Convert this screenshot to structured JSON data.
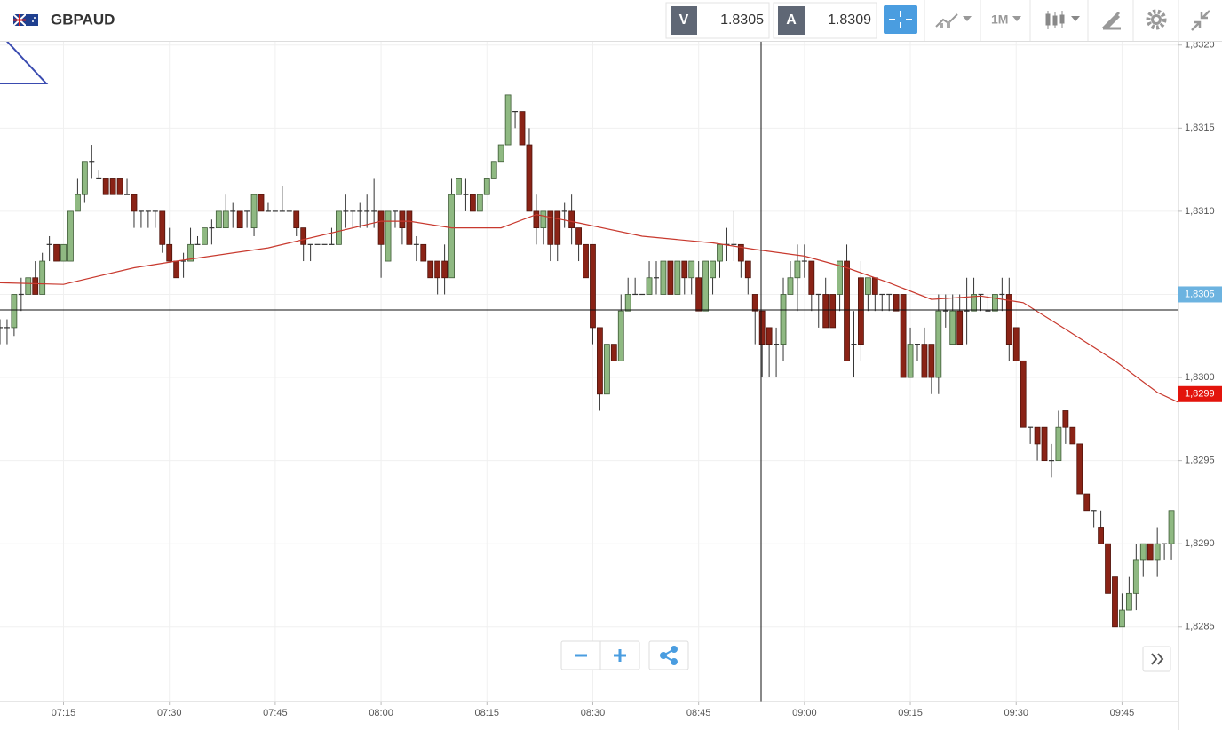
{
  "toolbar": {
    "symbol": "GBPAUD",
    "bid_label": "V",
    "bid": "1.8305",
    "ask_label": "A",
    "ask": "1.8309",
    "timeframe": "1M"
  },
  "chart_data": {
    "type": "candlestick",
    "x": [
      "07:06",
      "07:07",
      "07:08",
      "07:09",
      "07:10",
      "07:11",
      "07:12",
      "07:13",
      "07:14",
      "07:15",
      "07:16",
      "07:17",
      "07:18",
      "07:19",
      "07:20",
      "07:21",
      "07:22",
      "07:23",
      "07:24",
      "07:25",
      "07:26",
      "07:27",
      "07:28",
      "07:29",
      "07:30",
      "07:31",
      "07:32",
      "07:33",
      "07:34",
      "07:35",
      "07:36",
      "07:37",
      "07:38",
      "07:39",
      "07:40",
      "07:41",
      "07:42",
      "07:43",
      "07:44",
      "07:45",
      "07:46",
      "07:47",
      "07:48",
      "07:49",
      "07:50",
      "07:51",
      "07:52",
      "07:53",
      "07:54",
      "07:55",
      "07:56",
      "07:57",
      "07:58",
      "07:59",
      "08:00",
      "08:01",
      "08:02",
      "08:03",
      "08:04",
      "08:05",
      "08:06",
      "08:07",
      "08:08",
      "08:09",
      "08:10",
      "08:11",
      "08:12",
      "08:13",
      "08:14",
      "08:15",
      "08:16",
      "08:17",
      "08:18",
      "08:19",
      "08:20",
      "08:21",
      "08:22",
      "08:23",
      "08:24",
      "08:25",
      "08:26",
      "08:27",
      "08:28",
      "08:29",
      "08:30",
      "08:31",
      "08:32",
      "08:33",
      "08:34",
      "08:35",
      "08:36",
      "08:37",
      "08:38",
      "08:39",
      "08:40",
      "08:41",
      "08:42",
      "08:43",
      "08:44",
      "08:45",
      "08:46",
      "08:47",
      "08:48",
      "08:49",
      "08:50",
      "08:51",
      "08:52",
      "08:53",
      "08:54",
      "08:55",
      "08:56",
      "08:57",
      "08:58",
      "08:59",
      "09:00",
      "09:01",
      "09:02",
      "09:03",
      "09:04",
      "09:05",
      "09:06",
      "09:07",
      "09:08",
      "09:09",
      "09:10",
      "09:11",
      "09:12",
      "09:13",
      "09:14",
      "09:15",
      "09:16",
      "09:17",
      "09:18",
      "09:19",
      "09:20",
      "09:21",
      "09:22",
      "09:23",
      "09:24",
      "09:25",
      "09:26",
      "09:27",
      "09:28",
      "09:29",
      "09:30",
      "09:31",
      "09:32",
      "09:33",
      "09:34",
      "09:35",
      "09:36",
      "09:37",
      "09:38",
      "09:39",
      "09:40",
      "09:41",
      "09:42",
      "09:43",
      "09:44",
      "09:45",
      "09:46",
      "09:47",
      "09:48",
      "09:49",
      "09:50",
      "09:51",
      "09:52"
    ],
    "open": [
      1.8303,
      1.8303,
      1.8303,
      1.8305,
      1.8305,
      1.8306,
      1.8305,
      1.8308,
      1.8308,
      1.8307,
      1.8307,
      1.831,
      1.8311,
      1.8313,
      1.8312,
      1.8312,
      1.8312,
      1.8312,
      1.8311,
      1.8311,
      1.831,
      1.831,
      1.831,
      1.831,
      1.8308,
      1.8307,
      1.8307,
      1.8307,
      1.8308,
      1.8308,
      1.8309,
      1.8309,
      1.8309,
      1.831,
      1.831,
      1.831,
      1.8309,
      1.8311,
      1.831,
      1.831,
      1.831,
      1.831,
      1.831,
      1.8309,
      1.8308,
      1.8308,
      1.8308,
      1.8308,
      1.8308,
      1.831,
      1.831,
      1.831,
      1.831,
      1.831,
      1.831,
      1.8307,
      1.831,
      1.831,
      1.831,
      1.8308,
      1.8308,
      1.8307,
      1.8307,
      1.8307,
      1.8306,
      1.8311,
      1.8311,
      1.8311,
      1.831,
      1.8311,
      1.8312,
      1.8313,
      1.8314,
      1.8316,
      1.8316,
      1.8314,
      1.831,
      1.8309,
      1.831,
      1.831,
      1.831,
      1.831,
      1.8309,
      1.8308,
      1.8308,
      1.8303,
      1.8299,
      1.8302,
      1.8301,
      1.8304,
      1.8305,
      1.8305,
      1.8305,
      1.8306,
      1.8305,
      1.8307,
      1.8305,
      1.8307,
      1.8306,
      1.8306,
      1.8304,
      1.8306,
      1.8307,
      1.8308,
      1.8308,
      1.8308,
      1.8307,
      1.8305,
      1.8304,
      1.8303,
      1.8302,
      1.8302,
      1.8305,
      1.8306,
      1.8307,
      1.8307,
      1.8305,
      1.8305,
      1.8305,
      1.8305,
      1.8307,
      1.8302,
      1.8306,
      1.8305,
      1.8306,
      1.8305,
      1.8305,
      1.8305,
      1.8305,
      1.83,
      1.8302,
      1.8302,
      1.8302,
      1.83,
      1.8304,
      1.8302,
      1.8304,
      1.8304,
      1.8304,
      1.8305,
      1.8304,
      1.8304,
      1.8305,
      1.8305,
      1.8303,
      1.8301,
      1.8297,
      1.8297,
      1.8297,
      1.8295,
      1.8295,
      1.8298,
      1.8297,
      1.8296,
      1.8293,
      1.8292,
      1.8291,
      1.829,
      1.8288,
      1.8285,
      1.8286,
      1.8287,
      1.8289,
      1.829,
      1.8289,
      1.829,
      1.829
    ],
    "high": [
      1.83035,
      1.83035,
      1.8305,
      1.8306,
      1.8306,
      1.8307,
      1.83075,
      1.83085,
      1.8308,
      1.8308,
      1.831,
      1.8312,
      1.8313,
      1.8314,
      1.83125,
      1.8312,
      1.8312,
      1.8312,
      1.8312,
      1.8311,
      1.831,
      1.831,
      1.831,
      1.831,
      1.8309,
      1.8307,
      1.83075,
      1.8309,
      1.83085,
      1.8309,
      1.83095,
      1.831,
      1.8311,
      1.83105,
      1.831,
      1.831,
      1.8311,
      1.8311,
      1.83105,
      1.831,
      1.83115,
      1.831,
      1.831,
      1.8309,
      1.8308,
      1.8308,
      1.8308,
      1.8309,
      1.831,
      1.8311,
      1.831,
      1.83105,
      1.8311,
      1.8312,
      1.831,
      1.831,
      1.831,
      1.831,
      1.831,
      1.83085,
      1.8308,
      1.8307,
      1.8307,
      1.8308,
      1.8312,
      1.8312,
      1.8312,
      1.8311,
      1.8311,
      1.8312,
      1.8313,
      1.8314,
      1.8317,
      1.8316,
      1.8316,
      1.8315,
      1.8311,
      1.831,
      1.831,
      1.831,
      1.83105,
      1.8311,
      1.8309,
      1.8308,
      1.8308,
      1.8303,
      1.8302,
      1.8302,
      1.8305,
      1.8306,
      1.8306,
      1.8305,
      1.8307,
      1.8307,
      1.8307,
      1.8307,
      1.8307,
      1.8307,
      1.8307,
      1.8307,
      1.8307,
      1.8307,
      1.8308,
      1.8309,
      1.831,
      1.8308,
      1.8307,
      1.8305,
      1.8304,
      1.8303,
      1.8303,
      1.8306,
      1.8307,
      1.8308,
      1.8308,
      1.8307,
      1.8305,
      1.8306,
      1.8305,
      1.8307,
      1.8308,
      1.8304,
      1.8307,
      1.8306,
      1.8306,
      1.8305,
      1.8305,
      1.8305,
      1.8305,
      1.8303,
      1.8302,
      1.8303,
      1.8302,
      1.8305,
      1.8305,
      1.8305,
      1.8305,
      1.8306,
      1.8306,
      1.8305,
      1.8305,
      1.8305,
      1.8306,
      1.8306,
      1.8303,
      1.8301,
      1.8297,
      1.8297,
      1.8297,
      1.8296,
      1.8298,
      1.8298,
      1.8297,
      1.8296,
      1.8293,
      1.8292,
      1.8292,
      1.829,
      1.8288,
      1.8287,
      1.8288,
      1.829,
      1.829,
      1.829,
      1.8291,
      1.829,
      1.8292
    ],
    "low": [
      1.8302,
      1.8302,
      1.83025,
      1.8304,
      1.8305,
      1.8305,
      1.8305,
      1.8307,
      1.8307,
      1.8307,
      1.8307,
      1.831,
      1.83105,
      1.8312,
      1.8312,
      1.8311,
      1.8311,
      1.8311,
      1.8311,
      1.8309,
      1.8309,
      1.8309,
      1.8309,
      1.83075,
      1.8307,
      1.8306,
      1.8306,
      1.8307,
      1.8308,
      1.8308,
      1.8308,
      1.8309,
      1.8309,
      1.8309,
      1.8309,
      1.8309,
      1.83085,
      1.831,
      1.831,
      1.831,
      1.831,
      1.831,
      1.83085,
      1.8307,
      1.8307,
      1.8308,
      1.8308,
      1.8308,
      1.8308,
      1.8309,
      1.8309,
      1.8309,
      1.8309,
      1.8309,
      1.8306,
      1.8307,
      1.8309,
      1.8308,
      1.8308,
      1.8307,
      1.8307,
      1.8306,
      1.8305,
      1.8305,
      1.8306,
      1.8311,
      1.831,
      1.831,
      1.831,
      1.8311,
      1.8312,
      1.8313,
      1.8314,
      1.8315,
      1.8314,
      1.831,
      1.8308,
      1.8308,
      1.8307,
      1.8307,
      1.8309,
      1.8308,
      1.8307,
      1.8306,
      1.8302,
      1.8298,
      1.8299,
      1.8301,
      1.8301,
      1.8304,
      1.8305,
      1.8305,
      1.8305,
      1.8305,
      1.8305,
      1.8305,
      1.8305,
      1.8305,
      1.8305,
      1.8304,
      1.8304,
      1.8305,
      1.8306,
      1.8307,
      1.8307,
      1.8306,
      1.8305,
      1.8302,
      1.83,
      1.83,
      1.83,
      1.8301,
      1.8305,
      1.8304,
      1.8306,
      1.8304,
      1.8303,
      1.8303,
      1.8303,
      1.8304,
      1.8301,
      1.83,
      1.8301,
      1.8304,
      1.8304,
      1.8304,
      1.8304,
      1.8304,
      1.83,
      1.83,
      1.8301,
      1.83,
      1.8299,
      1.8299,
      1.8303,
      1.8302,
      1.8302,
      1.8302,
      1.8304,
      1.8304,
      1.8304,
      1.8304,
      1.8304,
      1.8301,
      1.8301,
      1.8297,
      1.8296,
      1.8295,
      1.8295,
      1.8294,
      1.8295,
      1.8296,
      1.8296,
      1.8293,
      1.8292,
      1.8291,
      1.829,
      1.8287,
      1.8285,
      1.8285,
      1.8286,
      1.8286,
      1.8288,
      1.8289,
      1.8288,
      1.8289,
      1.8289
    ],
    "close": [
      1.8303,
      1.8303,
      1.8305,
      1.8305,
      1.8306,
      1.8305,
      1.8307,
      1.8308,
      1.8307,
      1.8308,
      1.831,
      1.8311,
      1.8313,
      1.8313,
      1.8312,
      1.8311,
      1.8311,
      1.8311,
      1.8311,
      1.831,
      1.831,
      1.831,
      1.831,
      1.8308,
      1.8307,
      1.8306,
      1.8307,
      1.8308,
      1.8308,
      1.8309,
      1.8309,
      1.831,
      1.831,
      1.831,
      1.8309,
      1.831,
      1.8311,
      1.831,
      1.831,
      1.831,
      1.831,
      1.831,
      1.8309,
      1.8308,
      1.8308,
      1.8308,
      1.8308,
      1.8308,
      1.831,
      1.831,
      1.831,
      1.831,
      1.831,
      1.831,
      1.8308,
      1.831,
      1.831,
      1.8309,
      1.8308,
      1.8308,
      1.8307,
      1.8306,
      1.8306,
      1.8306,
      1.8311,
      1.8312,
      1.8311,
      1.831,
      1.8311,
      1.8312,
      1.8313,
      1.8314,
      1.8317,
      1.8316,
      1.8314,
      1.831,
      1.8309,
      1.831,
      1.8308,
      1.8308,
      1.831,
      1.8309,
      1.8308,
      1.8306,
      1.8303,
      1.8299,
      1.8302,
      1.8301,
      1.8304,
      1.8305,
      1.8305,
      1.8305,
      1.8306,
      1.8306,
      1.8307,
      1.8305,
      1.8307,
      1.8306,
      1.8307,
      1.8304,
      1.8307,
      1.8307,
      1.8308,
      1.8308,
      1.8308,
      1.8307,
      1.8306,
      1.8304,
      1.8302,
      1.8302,
      1.8302,
      1.8305,
      1.8306,
      1.8307,
      1.8307,
      1.8305,
      1.8305,
      1.8303,
      1.8303,
      1.8307,
      1.8301,
      1.8302,
      1.8302,
      1.8306,
      1.8305,
      1.8305,
      1.8305,
      1.8304,
      1.83,
      1.8302,
      1.8302,
      1.83,
      1.83,
      1.8304,
      1.8304,
      1.8304,
      1.8302,
      1.8304,
      1.8305,
      1.8305,
      1.8304,
      1.8305,
      1.8305,
      1.8302,
      1.8301,
      1.8297,
      1.8297,
      1.8296,
      1.8295,
      1.8295,
      1.8297,
      1.8297,
      1.8296,
      1.8293,
      1.8292,
      1.8292,
      1.829,
      1.8287,
      1.8285,
      1.8286,
      1.8287,
      1.8289,
      1.829,
      1.8289,
      1.829,
      1.829,
      1.8292
    ],
    "colors": {
      "up": "#8fb982",
      "down": "#8a2316"
    },
    "ma_x": [
      "07:06",
      "07:15",
      "07:25",
      "07:31",
      "07:44",
      "08:00",
      "08:04",
      "08:10",
      "08:17",
      "08:22",
      "08:28",
      "08:37",
      "08:47",
      "08:53",
      "09:00",
      "09:06",
      "09:12",
      "09:18",
      "09:25",
      "09:31",
      "09:37",
      "09:44",
      "09:50",
      "09:53"
    ],
    "ma_values": [
      1.83057,
      1.83056,
      1.83066,
      1.8307,
      1.83078,
      1.83094,
      1.83094,
      1.8309,
      1.8309,
      1.83098,
      1.83093,
      1.83085,
      1.83081,
      1.83077,
      1.83073,
      1.83066,
      1.83057,
      1.83047,
      1.83049,
      1.83045,
      1.83029,
      1.8301,
      1.82991,
      1.82985
    ],
    "ma_color": "#c8392e",
    "xlim": [
      "07:06",
      "09:53"
    ],
    "xticks": [
      "07:15",
      "07:30",
      "07:45",
      "08:00",
      "08:15",
      "08:30",
      "08:45",
      "09:00",
      "09:15",
      "09:30",
      "09:45"
    ],
    "ylim": [
      1.82805,
      1.83202
    ],
    "yticks": [
      {
        "value": 1.8285,
        "label": "1,8285"
      },
      {
        "value": 1.829,
        "label": "1,8290"
      },
      {
        "value": 1.8295,
        "label": "1,8295"
      },
      {
        "value": 1.83,
        "label": "1,8300"
      },
      {
        "value": 1.8305,
        "label": "1,8305"
      },
      {
        "value": 1.831,
        "label": "1,8310"
      },
      {
        "value": 1.8315,
        "label": "1,8315"
      },
      {
        "value": 1.832,
        "label": "1,8320"
      }
    ],
    "grid": true,
    "price_markers": [
      {
        "value": 1.8305,
        "label": "1,8305",
        "color": "#6cb3e0"
      },
      {
        "value": 1.8299,
        "label": "1,8299",
        "color": "#e3140c"
      }
    ]
  }
}
